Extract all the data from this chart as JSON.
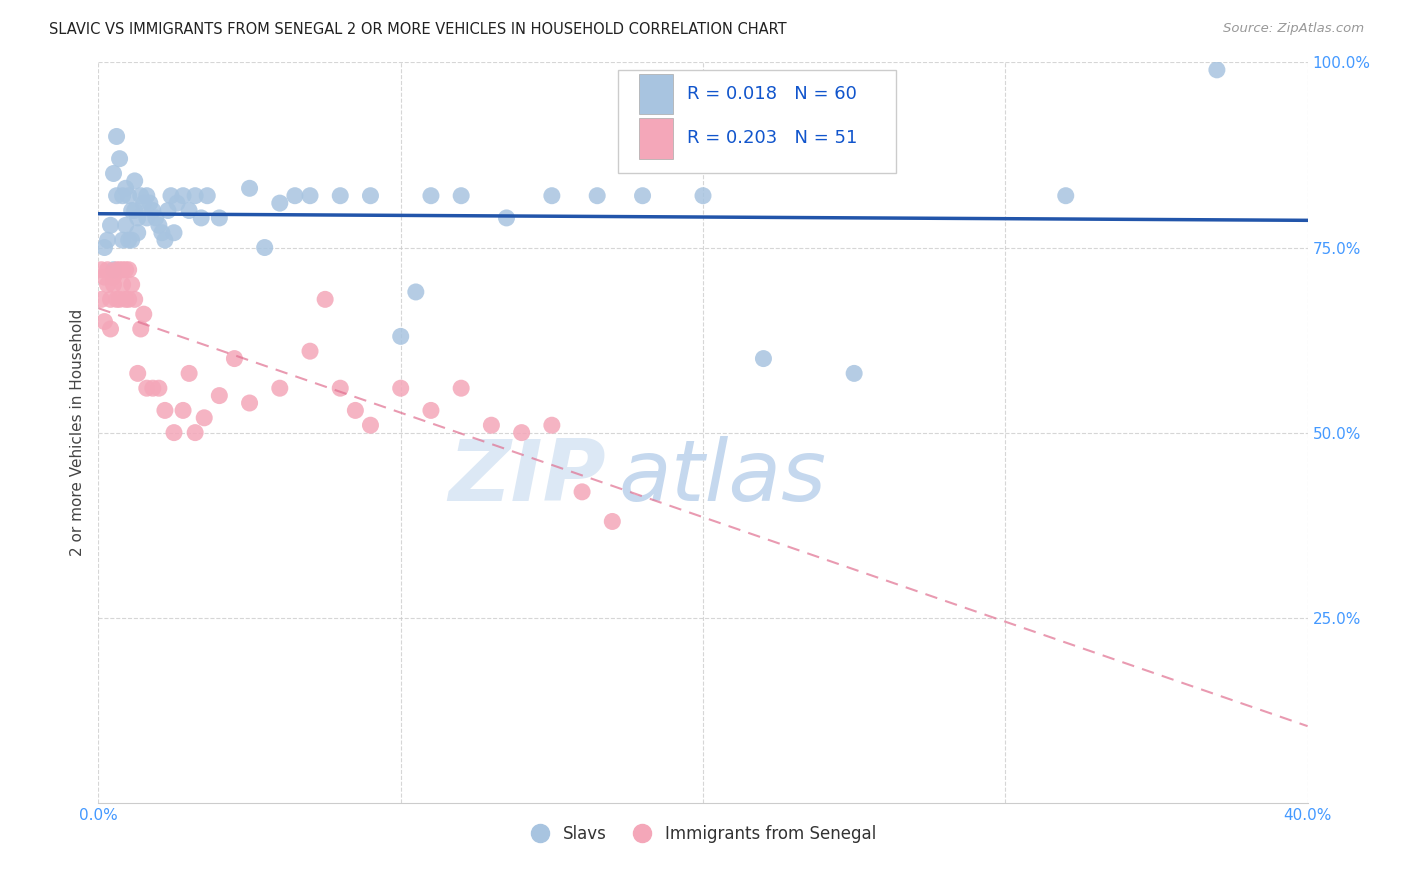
{
  "title": "SLAVIC VS IMMIGRANTS FROM SENEGAL 2 OR MORE VEHICLES IN HOUSEHOLD CORRELATION CHART",
  "source": "Source: ZipAtlas.com",
  "ylabel": "2 or more Vehicles in Household",
  "x_min": 0.0,
  "x_max": 0.4,
  "y_min": 0.0,
  "y_max": 1.0,
  "x_ticks": [
    0.0,
    0.1,
    0.2,
    0.3,
    0.4
  ],
  "x_tick_labels": [
    "0.0%",
    "",
    "",
    "",
    "40.0%"
  ],
  "y_ticks": [
    0.25,
    0.5,
    0.75,
    1.0
  ],
  "y_tick_labels": [
    "25.0%",
    "50.0%",
    "75.0%",
    "100.0%"
  ],
  "slavs_color": "#a8c4e0",
  "senegal_color": "#f4a7b9",
  "trend_slavs_color": "#2255aa",
  "trend_senegal_color": "#e07090",
  "R_slavs": 0.018,
  "N_slavs": 60,
  "R_senegal": 0.203,
  "N_senegal": 51,
  "legend_R_color": "#1155cc",
  "legend_label1": "Slavs",
  "legend_label2": "Immigrants from Senegal",
  "watermark_zip": "ZIP",
  "watermark_atlas": "atlas",
  "slavs_x": [
    0.002,
    0.003,
    0.004,
    0.005,
    0.005,
    0.006,
    0.006,
    0.007,
    0.008,
    0.008,
    0.009,
    0.009,
    0.01,
    0.01,
    0.011,
    0.011,
    0.012,
    0.012,
    0.013,
    0.013,
    0.014,
    0.015,
    0.016,
    0.016,
    0.017,
    0.018,
    0.019,
    0.02,
    0.021,
    0.022,
    0.023,
    0.024,
    0.025,
    0.026,
    0.028,
    0.03,
    0.032,
    0.034,
    0.036,
    0.04,
    0.05,
    0.055,
    0.06,
    0.065,
    0.07,
    0.08,
    0.09,
    0.1,
    0.105,
    0.11,
    0.12,
    0.135,
    0.15,
    0.165,
    0.18,
    0.2,
    0.22,
    0.25,
    0.32,
    0.37
  ],
  "slavs_y": [
    0.75,
    0.76,
    0.78,
    0.72,
    0.85,
    0.82,
    0.9,
    0.87,
    0.82,
    0.76,
    0.83,
    0.78,
    0.76,
    0.82,
    0.8,
    0.76,
    0.84,
    0.8,
    0.79,
    0.77,
    0.82,
    0.81,
    0.79,
    0.82,
    0.81,
    0.8,
    0.79,
    0.78,
    0.77,
    0.76,
    0.8,
    0.82,
    0.77,
    0.81,
    0.82,
    0.8,
    0.82,
    0.79,
    0.82,
    0.79,
    0.83,
    0.75,
    0.81,
    0.82,
    0.82,
    0.82,
    0.82,
    0.63,
    0.69,
    0.82,
    0.82,
    0.79,
    0.82,
    0.82,
    0.82,
    0.82,
    0.6,
    0.58,
    0.82,
    0.99
  ],
  "senegal_x": [
    0.001,
    0.001,
    0.002,
    0.002,
    0.003,
    0.003,
    0.004,
    0.004,
    0.005,
    0.005,
    0.006,
    0.006,
    0.007,
    0.007,
    0.008,
    0.008,
    0.009,
    0.009,
    0.01,
    0.01,
    0.011,
    0.012,
    0.013,
    0.014,
    0.015,
    0.016,
    0.018,
    0.02,
    0.022,
    0.025,
    0.028,
    0.03,
    0.032,
    0.035,
    0.04,
    0.045,
    0.05,
    0.06,
    0.07,
    0.075,
    0.08,
    0.085,
    0.09,
    0.1,
    0.11,
    0.12,
    0.13,
    0.14,
    0.15,
    0.16,
    0.17
  ],
  "senegal_y": [
    0.72,
    0.68,
    0.71,
    0.65,
    0.7,
    0.72,
    0.68,
    0.64,
    0.7,
    0.71,
    0.68,
    0.72,
    0.72,
    0.68,
    0.7,
    0.72,
    0.68,
    0.72,
    0.72,
    0.68,
    0.7,
    0.68,
    0.58,
    0.64,
    0.66,
    0.56,
    0.56,
    0.56,
    0.53,
    0.5,
    0.53,
    0.58,
    0.5,
    0.52,
    0.55,
    0.6,
    0.54,
    0.56,
    0.61,
    0.68,
    0.56,
    0.53,
    0.51,
    0.56,
    0.53,
    0.56,
    0.51,
    0.5,
    0.51,
    0.42,
    0.38
  ]
}
